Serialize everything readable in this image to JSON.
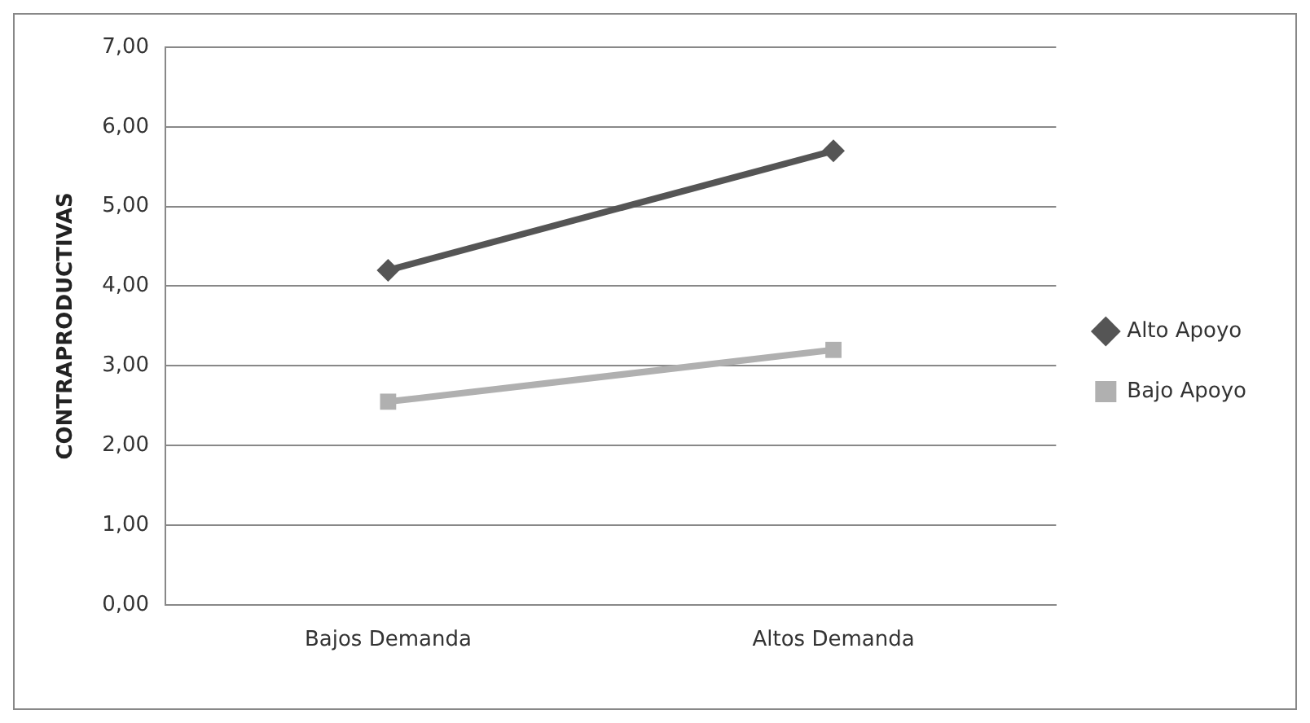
{
  "chart_data": {
    "type": "line",
    "ylabel": "CONTRAPRODUCTIVAS",
    "categories": [
      "Bajos Demanda",
      "Altos Demanda"
    ],
    "series": [
      {
        "name": "Alto Apoyo",
        "color": "#555555",
        "values": [
          4.2,
          5.7
        ],
        "marker": "diamond"
      },
      {
        "name": "Bajo Apoyo",
        "color": "#b0b0b0",
        "values": [
          2.55,
          3.2
        ],
        "marker": "square"
      }
    ],
    "ylim": [
      0,
      7
    ],
    "yticks": [
      {
        "value": 0,
        "label": "0,00"
      },
      {
        "value": 1,
        "label": "1,00"
      },
      {
        "value": 2,
        "label": "2,00"
      },
      {
        "value": 3,
        "label": "3,00"
      },
      {
        "value": 4,
        "label": "4,00"
      },
      {
        "value": 5,
        "label": "5,00"
      },
      {
        "value": 6,
        "label": "6,00"
      },
      {
        "value": 7,
        "label": "7,00"
      }
    ],
    "grid": "y",
    "legend": "right"
  }
}
